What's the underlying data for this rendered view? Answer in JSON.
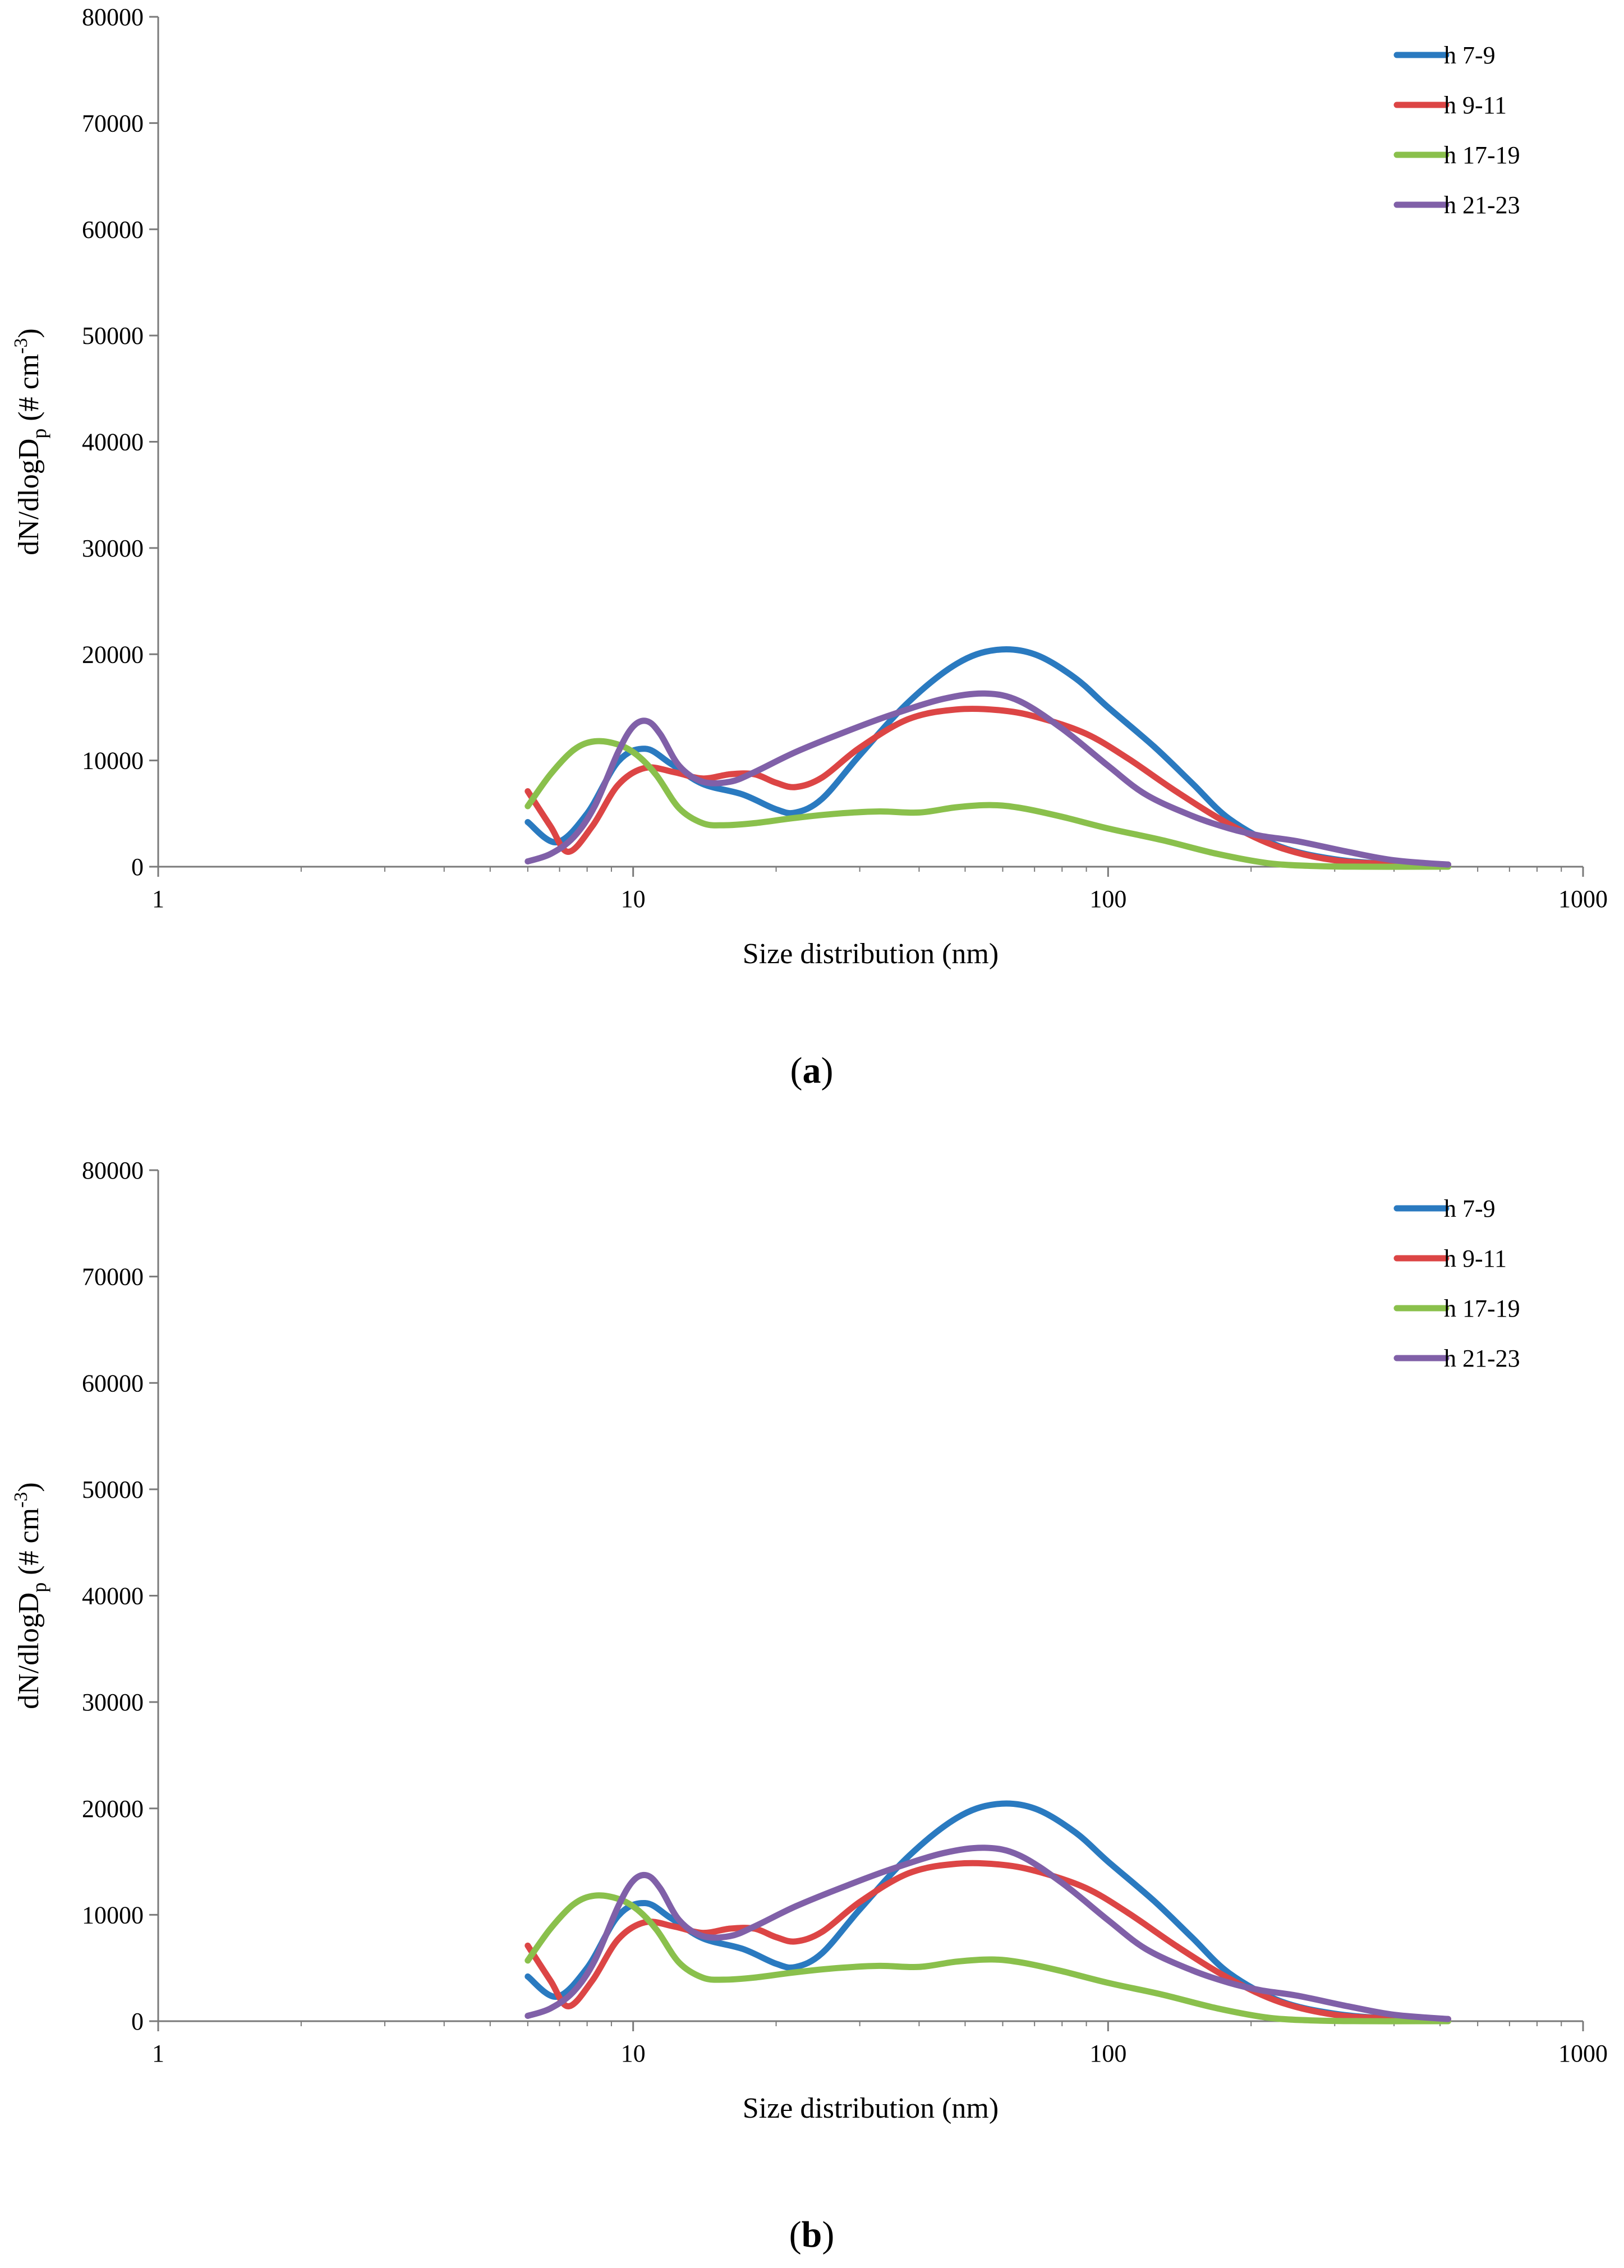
{
  "chart_data": [
    {
      "type": "line",
      "panel_label": "a",
      "xlabel": "Size distribution (nm)",
      "ylabel": "dN/dlogD",
      "ylabel_sub": "p",
      "ylabel_tail": " (# cm",
      "ylabel_sup": "-3",
      "ylabel_close": ")",
      "xscale": "log",
      "xlim": [
        1,
        1000
      ],
      "ylim": [
        0,
        80000
      ],
      "xticks": [
        1,
        10,
        100,
        1000
      ],
      "xtick_labels": [
        "1",
        "10",
        "100",
        "1000"
      ],
      "yticks": [
        0,
        10000,
        20000,
        30000,
        40000,
        50000,
        60000,
        70000,
        80000
      ],
      "ytick_labels": [
        "0",
        "10000",
        "20000",
        "30000",
        "40000",
        "50000",
        "60000",
        "70000",
        "80000"
      ],
      "legend_position": "top-right",
      "series": [
        {
          "name": "h 7-9",
          "color": "#2a7ac0",
          "x": [
            6,
            6.9,
            8,
            9.3,
            10.6,
            12,
            14,
            17,
            20,
            22,
            25,
            30,
            38,
            48,
            58,
            70,
            85,
            100,
            125,
            150,
            180,
            230,
            300,
            400,
            520
          ],
          "y": [
            4200,
            2300,
            5000,
            9900,
            11100,
            9700,
            7800,
            6800,
            5400,
            5100,
            6400,
            10500,
            15500,
            19100,
            20400,
            20000,
            17800,
            15000,
            11300,
            7900,
            4500,
            1900,
            700,
            250,
            200
          ]
        },
        {
          "name": "h 9-11",
          "color": "#dc4545",
          "x": [
            6,
            6.7,
            7.3,
            8.2,
            9.3,
            10.6,
            12.2,
            14,
            16,
            18,
            20,
            22,
            25,
            30,
            38,
            48,
            60,
            72,
            90,
            110,
            140,
            180,
            230,
            300,
            400,
            520
          ],
          "y": [
            7100,
            3800,
            1400,
            3800,
            7700,
            9300,
            8900,
            8300,
            8700,
            8700,
            7900,
            7500,
            8400,
            11200,
            13900,
            14800,
            14700,
            14000,
            12500,
            10200,
            7000,
            4000,
            1800,
            600,
            250,
            200
          ]
        },
        {
          "name": "h 17-19",
          "color": "#8ac04c",
          "x": [
            6,
            6.7,
            7.5,
            8.3,
            9.3,
            10.2,
            11.2,
            12.5,
            14,
            15.5,
            18,
            22,
            27,
            33,
            40,
            48,
            57,
            66,
            80,
            100,
            130,
            170,
            220,
            280,
            350,
            450,
            520
          ],
          "y": [
            5700,
            8700,
            11000,
            11800,
            11500,
            10500,
            8600,
            5500,
            4100,
            3900,
            4100,
            4600,
            5000,
            5200,
            5100,
            5600,
            5800,
            5500,
            4700,
            3600,
            2500,
            1200,
            300,
            50,
            0,
            0,
            0
          ]
        },
        {
          "name": "h 21-23",
          "color": "#8060a8",
          "x": [
            6,
            6.7,
            7.5,
            8.3,
            9.3,
            10,
            10.7,
            11.4,
            12.5,
            14,
            16,
            18,
            22,
            28,
            35,
            45,
            55,
            65,
            80,
            100,
            120,
            150,
            180,
            210,
            250,
            320,
            400,
            520
          ],
          "y": [
            500,
            1200,
            2800,
            5700,
            10800,
            13200,
            13700,
            12500,
            9500,
            8000,
            8000,
            8900,
            10800,
            12700,
            14300,
            15800,
            16300,
            15600,
            13000,
            9500,
            6800,
            4800,
            3600,
            2900,
            2400,
            1400,
            600,
            200
          ]
        }
      ]
    },
    {
      "type": "line",
      "panel_label": "b",
      "xlabel": "Size distribution (nm)",
      "ylabel": "dN/dlogD",
      "ylabel_sub": "p",
      "ylabel_tail": " (# cm",
      "ylabel_sup": "-3",
      "ylabel_close": ")",
      "xscale": "log",
      "xlim": [
        1,
        1000
      ],
      "ylim": [
        0,
        80000
      ],
      "xticks": [
        1,
        10,
        100,
        1000
      ],
      "xtick_labels": [
        "1",
        "10",
        "100",
        "1000"
      ],
      "yticks": [
        0,
        10000,
        20000,
        30000,
        40000,
        50000,
        60000,
        70000,
        80000
      ],
      "ytick_labels": [
        "0",
        "10000",
        "20000",
        "30000",
        "40000",
        "50000",
        "60000",
        "70000",
        "80000"
      ],
      "legend_position": "top-right",
      "series": [
        {
          "name": "h 7-9",
          "color": "#2a7ac0",
          "x": [
            6,
            6.9,
            8,
            9.3,
            10.6,
            12,
            14,
            17,
            20,
            22,
            25,
            30,
            38,
            48,
            58,
            70,
            85,
            100,
            125,
            150,
            180,
            230,
            300,
            400,
            520
          ],
          "y": [
            4200,
            2300,
            5000,
            9900,
            11100,
            9700,
            7800,
            6800,
            5400,
            5100,
            6400,
            10500,
            15500,
            19100,
            20400,
            20000,
            17800,
            15000,
            11300,
            7900,
            4500,
            1900,
            700,
            250,
            200
          ]
        },
        {
          "name": "h 9-11",
          "color": "#dc4545",
          "x": [
            6,
            6.7,
            7.3,
            8.2,
            9.3,
            10.6,
            12.2,
            14,
            16,
            18,
            20,
            22,
            25,
            30,
            38,
            48,
            60,
            72,
            90,
            110,
            140,
            180,
            230,
            300,
            400,
            520
          ],
          "y": [
            7100,
            3800,
            1400,
            3800,
            7700,
            9300,
            8900,
            8300,
            8700,
            8700,
            7900,
            7500,
            8400,
            11200,
            13900,
            14800,
            14700,
            14000,
            12500,
            10200,
            7000,
            4000,
            1800,
            600,
            250,
            200
          ]
        },
        {
          "name": "h 17-19",
          "color": "#8ac04c",
          "x": [
            6,
            6.7,
            7.5,
            8.3,
            9.3,
            10.2,
            11.2,
            12.5,
            14,
            15.5,
            18,
            22,
            27,
            33,
            40,
            48,
            57,
            66,
            80,
            100,
            130,
            170,
            220,
            280,
            350,
            450,
            520
          ],
          "y": [
            5700,
            8700,
            11000,
            11800,
            11500,
            10500,
            8600,
            5500,
            4100,
            3900,
            4100,
            4600,
            5000,
            5200,
            5100,
            5600,
            5800,
            5500,
            4700,
            3600,
            2500,
            1200,
            300,
            50,
            0,
            0,
            0
          ]
        },
        {
          "name": "h 21-23",
          "color": "#8060a8",
          "x": [
            6,
            6.7,
            7.5,
            8.3,
            9.3,
            10,
            10.7,
            11.4,
            12.5,
            14,
            16,
            18,
            22,
            28,
            35,
            45,
            55,
            65,
            80,
            100,
            120,
            150,
            180,
            210,
            250,
            320,
            400,
            520
          ],
          "y": [
            500,
            1200,
            2800,
            5700,
            10800,
            13200,
            13700,
            12500,
            9500,
            8000,
            8000,
            8900,
            10800,
            12700,
            14300,
            15800,
            16300,
            15600,
            13000,
            9500,
            6800,
            4800,
            3600,
            2900,
            2400,
            1400,
            600,
            200
          ]
        }
      ]
    }
  ]
}
